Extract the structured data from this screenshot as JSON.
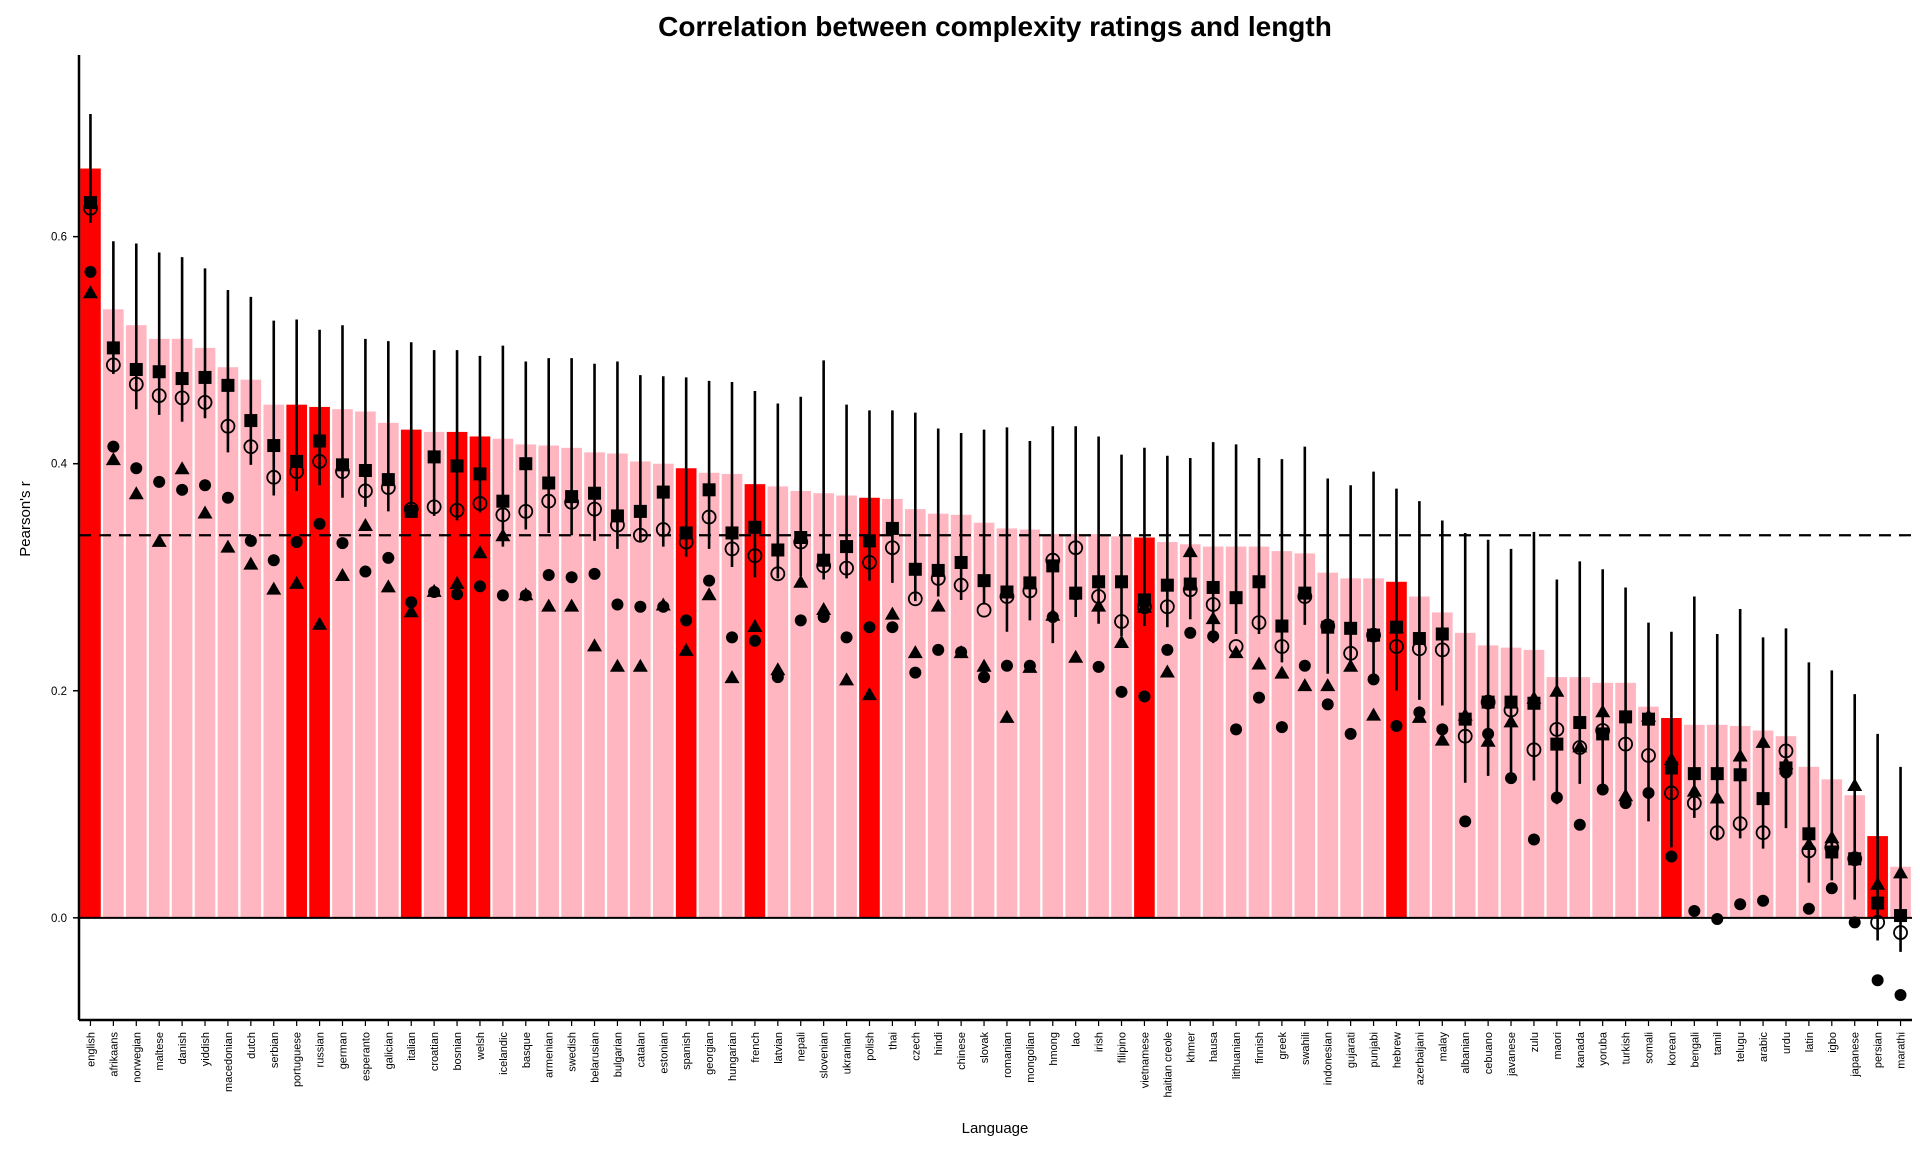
{
  "chart_data": {
    "type": "bar",
    "title": "Correlation between complexity ratings and length",
    "xlabel": "Language",
    "ylabel": "Pearson's r",
    "ylim": [
      -0.09,
      0.76
    ],
    "yticks": [
      0.0,
      0.2,
      0.4,
      0.6
    ],
    "ytick_labels": [
      "0.0",
      "0.2",
      "0.4",
      "0.6"
    ],
    "reference_line": 0.337,
    "colors": {
      "highlight": "#ff0000",
      "bar": "#ffb6c1",
      "marker": "#000000"
    },
    "categories": [
      "english",
      "afrikaans",
      "norwegian",
      "maltese",
      "danish",
      "yiddish",
      "macedonian",
      "dutch",
      "serbian",
      "portuguese",
      "russian",
      "german",
      "esperanto",
      "galician",
      "italian",
      "croatian",
      "bosnian",
      "welsh",
      "icelandic",
      "basque",
      "armenian",
      "swedish",
      "belarusian",
      "bulgarian",
      "catalan",
      "estonian",
      "spanish",
      "georgian",
      "hungarian",
      "french",
      "latvian",
      "nepali",
      "slovenian",
      "ukranian",
      "polish",
      "thai",
      "czech",
      "hindi",
      "chinese",
      "slovak",
      "romanian",
      "mongolian",
      "hmong",
      "lao",
      "irish",
      "filipino",
      "vietnamese",
      "haitian creole",
      "khmer",
      "hausa",
      "lithuanian",
      "finnish",
      "greek",
      "swahili",
      "indonesian",
      "gujarati",
      "punjabi",
      "hebrew",
      "azerbaijani",
      "malay",
      "albanian",
      "cebuano",
      "javanese",
      "zulu",
      "maori",
      "kanada",
      "yoruba",
      "turkish",
      "somali",
      "korean",
      "bengali",
      "tamil",
      "telugu",
      "arabic",
      "urdu",
      "latin",
      "igbo",
      "japanese",
      "persian",
      "marathi"
    ],
    "highlighted": [
      "english",
      "portuguese",
      "russian",
      "italian",
      "bosnian",
      "welsh",
      "spanish",
      "french",
      "polish",
      "vietnamese",
      "hebrew",
      "korean",
      "persian"
    ],
    "series": [
      {
        "values": [
          0.66,
          0.536,
          0.522,
          0.51,
          0.51,
          0.502,
          0.485,
          0.474,
          0.452,
          0.452,
          0.45,
          0.448,
          0.446,
          0.436,
          0.43,
          0.428,
          0.428,
          0.424,
          0.422,
          0.417,
          0.416,
          0.414,
          0.41,
          0.409,
          0.402,
          0.4,
          0.396,
          0.392,
          0.391,
          0.382,
          0.38,
          0.376,
          0.374,
          0.372,
          0.37,
          0.369,
          0.36,
          0.356,
          0.355,
          0.348,
          0.343,
          0.342,
          0.338,
          0.338,
          0.338,
          0.336,
          0.335,
          0.331,
          0.329,
          0.327,
          0.327,
          0.327,
          0.323,
          0.321,
          0.304,
          0.299,
          0.299,
          0.296,
          0.283,
          0.269,
          0.251,
          0.24,
          0.238,
          0.236,
          0.212,
          0.212,
          0.207,
          0.207,
          0.186,
          0.176,
          0.17,
          0.17,
          0.169,
          0.165,
          0.16,
          0.133,
          0.122,
          0.108,
          0.072,
          0.045
        ]
      },
      {
        "values": [
          0.63,
          0.502,
          0.483,
          0.481,
          0.475,
          0.476,
          0.469,
          0.438,
          0.416,
          0.402,
          0.42,
          0.399,
          0.394,
          0.386,
          0.358,
          0.406,
          0.398,
          0.391,
          0.367,
          0.4,
          0.383,
          0.371,
          0.374,
          0.354,
          0.358,
          0.375,
          0.339,
          0.377,
          0.339,
          0.344,
          0.324,
          0.335,
          0.315,
          0.327,
          0.332,
          0.343,
          0.307,
          0.306,
          0.313,
          0.297,
          0.287,
          0.295,
          0.31,
          0.286,
          0.296,
          0.296,
          0.28,
          0.293,
          0.294,
          0.291,
          0.282,
          0.296,
          0.257,
          0.286,
          0.256,
          0.255,
          0.249,
          0.256,
          0.246,
          0.25,
          0.175,
          0.19,
          0.19,
          0.189,
          0.153,
          0.172,
          0.162,
          0.177,
          0.175,
          0.132,
          0.127,
          0.127,
          0.126,
          0.105,
          0.132,
          0.074,
          0.058,
          0.052,
          0.013,
          0.002
        ]
      },
      {
        "values": [
          0.625,
          0.487,
          0.47,
          0.46,
          0.458,
          0.454,
          0.433,
          0.415,
          0.388,
          0.393,
          0.402,
          0.393,
          0.376,
          0.379,
          0.36,
          0.362,
          0.359,
          0.365,
          0.355,
          0.358,
          0.367,
          0.366,
          0.36,
          0.346,
          0.337,
          0.342,
          0.331,
          0.353,
          0.325,
          0.319,
          0.303,
          0.331,
          0.31,
          0.308,
          0.313,
          0.326,
          0.281,
          0.299,
          0.293,
          0.271,
          0.283,
          0.288,
          0.315,
          0.326,
          0.283,
          0.261,
          0.274,
          0.274,
          0.289,
          0.276,
          0.239,
          0.26,
          0.239,
          0.283,
          0.257,
          0.233,
          0.249,
          0.239,
          0.237,
          0.236,
          0.16,
          0.19,
          0.183,
          0.148,
          0.166,
          0.15,
          0.165,
          0.153,
          0.143,
          0.11,
          0.101,
          0.075,
          0.083,
          0.075,
          0.147,
          0.059,
          0.062,
          0.052,
          -0.004,
          -0.013
        ]
      },
      {
        "values": [
          0.569,
          0.415,
          0.396,
          0.384,
          0.377,
          0.381,
          0.37,
          0.332,
          0.315,
          0.331,
          0.347,
          0.33,
          0.305,
          0.317,
          0.278,
          0.287,
          0.285,
          0.292,
          0.284,
          0.284,
          0.302,
          0.3,
          0.303,
          0.276,
          0.274,
          0.274,
          0.262,
          0.297,
          0.247,
          0.244,
          0.212,
          0.262,
          0.265,
          0.247,
          0.256,
          0.256,
          0.216,
          0.236,
          0.234,
          0.212,
          0.222,
          0.222,
          0.265,
          0.285,
          0.221,
          0.199,
          0.195,
          0.236,
          0.251,
          0.248,
          0.166,
          0.194,
          0.168,
          0.222,
          0.188,
          0.162,
          0.21,
          0.169,
          0.181,
          0.166,
          0.085,
          0.162,
          0.123,
          0.069,
          0.106,
          0.082,
          0.113,
          0.101,
          0.11,
          0.054,
          0.006,
          -0.001,
          0.012,
          0.015,
          0.128,
          0.008,
          0.026,
          -0.004,
          -0.055,
          -0.068
        ]
      },
      {
        "values": [
          0.551,
          0.404,
          0.374,
          0.332,
          0.396,
          0.357,
          0.327,
          0.312,
          0.29,
          0.295,
          0.259,
          0.302,
          0.346,
          0.292,
          0.27,
          0.288,
          0.295,
          0.322,
          0.337,
          0.285,
          0.275,
          0.275,
          0.24,
          0.222,
          0.222,
          0.276,
          0.236,
          0.285,
          0.212,
          0.257,
          0.219,
          0.296,
          0.272,
          0.21,
          0.197,
          0.268,
          0.234,
          0.275,
          0.234,
          0.222,
          0.177,
          0.221,
          0.267,
          0.23,
          0.275,
          0.243,
          0.274,
          0.217,
          0.323,
          0.264,
          0.234,
          0.224,
          0.216,
          0.205,
          0.205,
          0.222,
          0.179,
          0.256,
          0.177,
          0.157,
          0.179,
          0.156,
          0.173,
          0.194,
          0.2,
          0.151,
          0.182,
          0.108,
          0.178,
          0.14,
          0.112,
          0.106,
          0.143,
          0.155,
          0.136,
          0.065,
          0.071,
          0.117,
          0.03,
          0.04
        ]
      },
      {
        "values": [
          0.708,
          0.596,
          0.594,
          0.586,
          0.582,
          0.572,
          0.553,
          0.547,
          0.526,
          0.527,
          0.518,
          0.522,
          0.51,
          0.508,
          0.507,
          0.5,
          0.5,
          0.495,
          0.504,
          0.49,
          0.493,
          0.493,
          0.488,
          0.49,
          0.478,
          0.477,
          0.476,
          0.473,
          0.472,
          0.464,
          0.453,
          0.459,
          0.491,
          0.452,
          0.447,
          0.447,
          0.445,
          0.431,
          0.427,
          0.43,
          0.432,
          0.42,
          0.433,
          0.433,
          0.424,
          0.408,
          0.414,
          0.407,
          0.405,
          0.419,
          0.417,
          0.405,
          0.404,
          0.415,
          0.387,
          0.381,
          0.393,
          0.378,
          0.367,
          0.35,
          0.339,
          0.333,
          0.325,
          0.34,
          0.298,
          0.314,
          0.307,
          0.291,
          0.26,
          0.252,
          0.283,
          0.25,
          0.272,
          0.247,
          0.255,
          0.225,
          0.218,
          0.197,
          0.162,
          0.133
        ]
      },
      {
        "values": [
          0.612,
          0.479,
          0.448,
          0.443,
          0.437,
          0.44,
          0.41,
          0.399,
          0.372,
          0.376,
          0.381,
          0.37,
          0.362,
          0.358,
          0.355,
          0.354,
          0.35,
          0.357,
          0.327,
          0.342,
          0.339,
          0.337,
          0.332,
          0.325,
          0.332,
          0.327,
          0.318,
          0.325,
          0.309,
          0.3,
          0.299,
          0.301,
          0.298,
          0.299,
          0.297,
          0.295,
          0.279,
          0.283,
          0.28,
          0.277,
          0.252,
          0.262,
          0.242,
          0.265,
          0.259,
          0.248,
          0.257,
          0.256,
          0.263,
          0.242,
          0.25,
          0.25,
          0.225,
          0.258,
          0.215,
          0.217,
          0.212,
          0.2,
          0.192,
          0.187,
          0.119,
          0.125,
          0.128,
          0.121,
          0.1,
          0.118,
          0.109,
          0.102,
          0.085,
          0.062,
          0.088,
          0.068,
          0.07,
          0.061,
          0.079,
          0.031,
          0.033,
          0.016,
          -0.02,
          -0.03
        ]
      }
    ]
  }
}
